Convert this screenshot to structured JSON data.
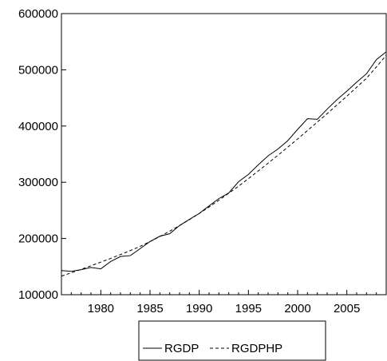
{
  "chart_data": {
    "type": "line",
    "title": "",
    "xlabel": "",
    "ylabel": "",
    "xlim": [
      1976,
      2009
    ],
    "ylim": [
      100000,
      600000
    ],
    "x_ticks": [
      1980,
      1985,
      1990,
      1995,
      2000,
      2005
    ],
    "y_ticks": [
      100000,
      200000,
      300000,
      400000,
      500000,
      600000
    ],
    "x_tick_labels": [
      "1980",
      "1985",
      "1990",
      "1995",
      "2000",
      "2005"
    ],
    "y_tick_labels": [
      "100000",
      "200000",
      "300000",
      "400000",
      "500000",
      "600000"
    ],
    "grid": false,
    "legend_position": "bottom-center",
    "x": [
      1976,
      1977,
      1978,
      1979,
      1980,
      1981,
      1982,
      1983,
      1984,
      1985,
      1986,
      1987,
      1988,
      1989,
      1990,
      1991,
      1992,
      1993,
      1994,
      1995,
      1996,
      1997,
      1998,
      1999,
      2000,
      2001,
      2002,
      2003,
      2004,
      2005,
      2006,
      2007,
      2008,
      2009
    ],
    "series": [
      {
        "name": "RGDP",
        "style": "solid",
        "values": [
          143000,
          141500,
          144500,
          148500,
          146000,
          159000,
          168000,
          169500,
          182000,
          194500,
          204000,
          208500,
          223000,
          234000,
          244500,
          258000,
          271000,
          281000,
          301000,
          314000,
          331000,
          347000,
          359000,
          374000,
          394000,
          413000,
          412000,
          430000,
          447000,
          462000,
          478000,
          493000,
          518000,
          532000
        ]
      },
      {
        "name": "RGDPHP",
        "style": "dashed",
        "values": [
          133000,
          139000,
          145000,
          151500,
          158000,
          164500,
          171500,
          178500,
          186000,
          194500,
          203500,
          213000,
          223000,
          233500,
          244500,
          256000,
          268000,
          280500,
          293000,
          306500,
          320000,
          334000,
          348000,
          362500,
          377000,
          392000,
          407000,
          422000,
          437500,
          453000,
          469000,
          485000,
          505000,
          526000
        ]
      }
    ]
  }
}
